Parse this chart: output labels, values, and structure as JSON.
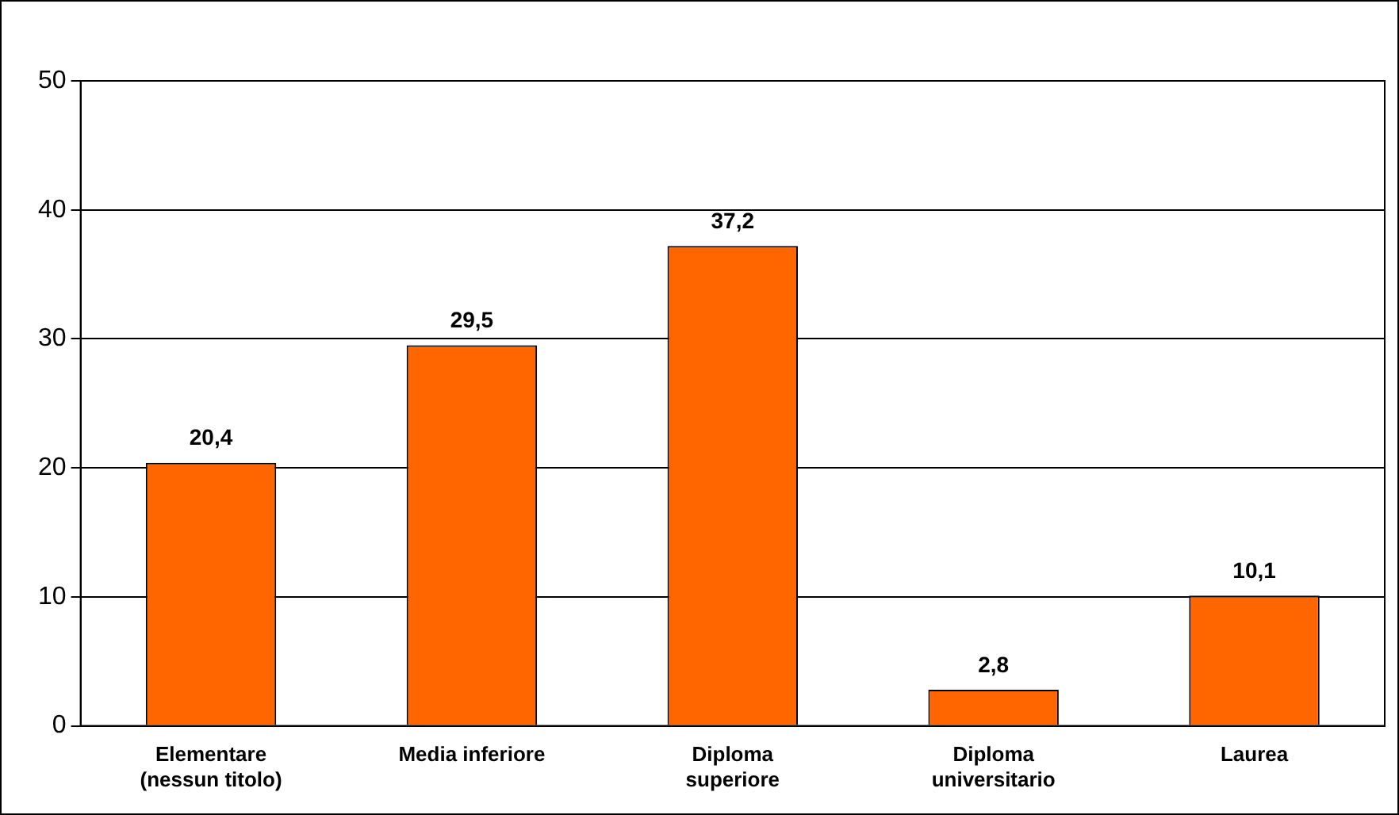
{
  "chart_data": {
    "type": "bar",
    "categories": [
      "Elementare (nessun titolo)",
      "Media inferiore",
      "Diploma superiore",
      "Diploma universitario",
      "Laurea"
    ],
    "values": [
      20.4,
      29.5,
      37.2,
      2.8,
      10.1
    ],
    "value_labels": [
      "20,4",
      "29,5",
      "37,2",
      "2,8",
      "10,1"
    ],
    "color": "#ff6600",
    "ylim": [
      0,
      50
    ],
    "yticks": [
      0,
      10,
      20,
      30,
      40,
      50
    ],
    "grid": "y",
    "legend": false
  }
}
